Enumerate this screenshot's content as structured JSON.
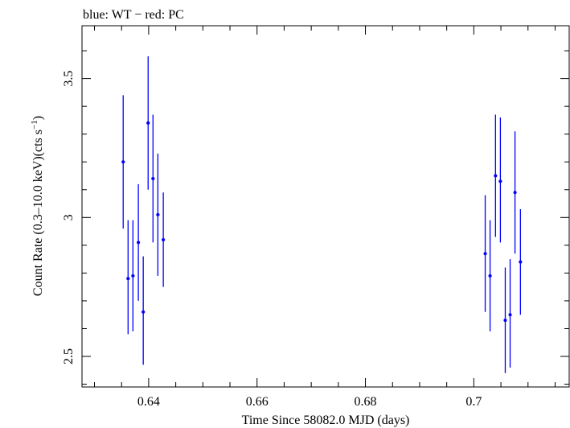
{
  "chart_data": {
    "type": "scatter",
    "title": "blue: WT − red: PC",
    "xlabel": "Time Since 58082.0 MJD (days)",
    "ylabel_main": "Count Rate (0.3–10.0 keV)(cts s",
    "ylabel_sup": "−1",
    "ylabel_close": ")",
    "xlim": [
      0.6277,
      0.7176
    ],
    "ylim": [
      2.39,
      3.69
    ],
    "x_ticks": [
      0.64,
      0.66,
      0.68,
      0.7
    ],
    "x_tick_labels": [
      "0.64",
      "0.66",
      "0.68",
      "0.7"
    ],
    "y_ticks": [
      2.5,
      3.0,
      3.5
    ],
    "y_tick_labels": [
      "2.5",
      "3",
      "3.5"
    ],
    "grid": false,
    "series": [
      {
        "color": "#0000ff",
        "points": [
          {
            "x": 0.6353,
            "y": 3.2,
            "xerr": 0.0003,
            "ylo": 2.96,
            "yhi": 3.44
          },
          {
            "x": 0.6362,
            "y": 2.78,
            "xerr": 0.0003,
            "ylo": 2.58,
            "yhi": 2.99
          },
          {
            "x": 0.6371,
            "y": 2.79,
            "xerr": 0.0003,
            "ylo": 2.59,
            "yhi": 2.99
          },
          {
            "x": 0.6381,
            "y": 2.91,
            "xerr": 0.0003,
            "ylo": 2.7,
            "yhi": 3.12
          },
          {
            "x": 0.639,
            "y": 2.66,
            "xerr": 0.0003,
            "ylo": 2.47,
            "yhi": 2.86
          },
          {
            "x": 0.6399,
            "y": 3.34,
            "xerr": 0.0003,
            "ylo": 3.1,
            "yhi": 3.58
          },
          {
            "x": 0.6408,
            "y": 3.14,
            "xerr": 0.0003,
            "ylo": 2.91,
            "yhi": 3.37
          },
          {
            "x": 0.6417,
            "y": 3.01,
            "xerr": 0.0003,
            "ylo": 2.79,
            "yhi": 3.23
          },
          {
            "x": 0.6427,
            "y": 2.92,
            "xerr": 0.0003,
            "ylo": 2.75,
            "yhi": 3.09
          },
          {
            "x": 0.7021,
            "y": 2.87,
            "xerr": 0.0003,
            "ylo": 2.66,
            "yhi": 3.08
          },
          {
            "x": 0.703,
            "y": 2.79,
            "xerr": 0.0003,
            "ylo": 2.59,
            "yhi": 2.99
          },
          {
            "x": 0.704,
            "y": 3.15,
            "xerr": 0.0003,
            "ylo": 2.93,
            "yhi": 3.37
          },
          {
            "x": 0.7049,
            "y": 3.13,
            "xerr": 0.0003,
            "ylo": 2.91,
            "yhi": 3.36
          },
          {
            "x": 0.7058,
            "y": 2.63,
            "xerr": 0.0003,
            "ylo": 2.44,
            "yhi": 2.82
          },
          {
            "x": 0.7067,
            "y": 2.65,
            "xerr": 0.0003,
            "ylo": 2.46,
            "yhi": 2.85
          },
          {
            "x": 0.7076,
            "y": 3.09,
            "xerr": 0.0003,
            "ylo": 2.87,
            "yhi": 3.31
          },
          {
            "x": 0.7086,
            "y": 2.84,
            "xerr": 0.0003,
            "ylo": 2.65,
            "yhi": 3.03
          }
        ]
      }
    ]
  }
}
